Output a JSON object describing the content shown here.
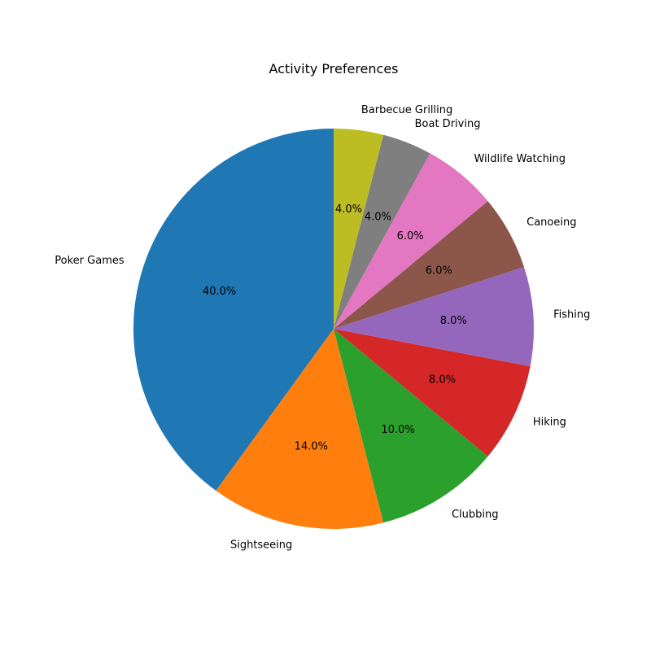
{
  "chart_data": {
    "type": "pie",
    "title": "Activity Preferences",
    "autopct_format": "{value}%",
    "start_angle_deg": 90,
    "direction": "counterclockwise",
    "slices": [
      {
        "label": "Poker Games",
        "value": 40.0,
        "pct_text": "40.0%",
        "color": "#1f77b4"
      },
      {
        "label": "Sightseeing",
        "value": 14.0,
        "pct_text": "14.0%",
        "color": "#ff7f0e"
      },
      {
        "label": "Clubbing",
        "value": 10.0,
        "pct_text": "10.0%",
        "color": "#2ca02c"
      },
      {
        "label": "Hiking",
        "value": 8.0,
        "pct_text": "8.0%",
        "color": "#d62728"
      },
      {
        "label": "Fishing",
        "value": 8.0,
        "pct_text": "8.0%",
        "color": "#9467bd"
      },
      {
        "label": "Canoeing",
        "value": 6.0,
        "pct_text": "6.0%",
        "color": "#8c564b"
      },
      {
        "label": "Wildlife Watching",
        "value": 6.0,
        "pct_text": "6.0%",
        "color": "#e377c2"
      },
      {
        "label": "Boat Driving",
        "value": 4.0,
        "pct_text": "4.0%",
        "color": "#7f7f7f"
      },
      {
        "label": "Barbecue Grilling",
        "value": 4.0,
        "pct_text": "4.0%",
        "color": "#bcbd22"
      }
    ]
  }
}
